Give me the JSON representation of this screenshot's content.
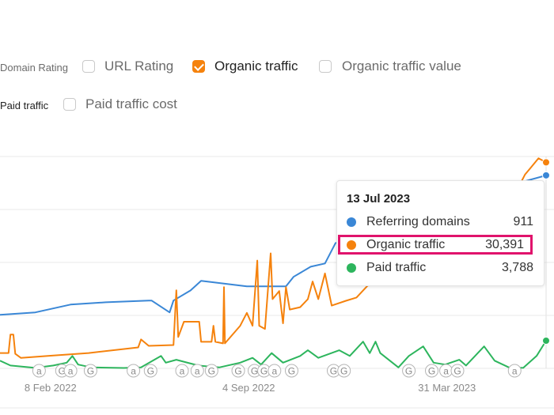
{
  "options": [
    {
      "label": "Domain Rating",
      "checked": false
    },
    {
      "label": "URL Rating",
      "checked": false
    },
    {
      "label": "Organic traffic",
      "checked": true
    },
    {
      "label": "Organic traffic value",
      "checked": false
    },
    {
      "label": "Paid traffic",
      "checked": false
    },
    {
      "label": "Paid traffic cost",
      "checked": false
    }
  ],
  "tooltip": {
    "date": "13 Jul 2023",
    "rows": [
      {
        "label": "Referring domains",
        "value": "911",
        "color": "#3a87d6"
      },
      {
        "label": "Organic traffic",
        "value": "30,391",
        "color": "#f5820d"
      },
      {
        "label": "Paid traffic",
        "value": "3,788",
        "color": "#2db55d"
      }
    ],
    "highlight_color": "#e0136c"
  },
  "chart_data": {
    "type": "line",
    "xlim": [
      "2021-12-17",
      "2023-07-13"
    ],
    "x_ticks": [
      {
        "date": "2022-02-08",
        "label": "8 Feb 2022"
      },
      {
        "date": "2022-09-04",
        "label": "4 Sep 2022"
      },
      {
        "date": "2023-03-31",
        "label": "31 Mar 2023"
      }
    ],
    "grid": true,
    "series": [
      {
        "name": "Referring domains",
        "color": "#3a87d6",
        "ymax": 1000,
        "points": [
          [
            "2021-12-17",
            253
          ],
          [
            "2022-01-23",
            264
          ],
          [
            "2022-03-01",
            301
          ],
          [
            "2022-04-07",
            312
          ],
          [
            "2022-05-22",
            320
          ],
          [
            "2022-05-25",
            320
          ],
          [
            "2022-06-13",
            264
          ],
          [
            "2022-06-17",
            320
          ],
          [
            "2022-07-05",
            368
          ],
          [
            "2022-07-16",
            413
          ],
          [
            "2022-09-02",
            387
          ],
          [
            "2022-10-13",
            387
          ],
          [
            "2022-10-21",
            432
          ],
          [
            "2022-11-08",
            480
          ],
          [
            "2022-11-23",
            495
          ],
          [
            "2022-12-04",
            591
          ],
          [
            "2023-01-21",
            673
          ],
          [
            "2023-03-12",
            748
          ],
          [
            "2023-05-01",
            804
          ],
          [
            "2023-06-10",
            848
          ],
          [
            "2023-06-22",
            885
          ],
          [
            "2023-07-13",
            911
          ]
        ]
      },
      {
        "name": "Organic traffic",
        "color": "#f5820d",
        "ymax": 31250,
        "points": [
          [
            "2021-12-17",
            2260
          ],
          [
            "2021-12-26",
            2260
          ],
          [
            "2021-12-28",
            4990
          ],
          [
            "2021-12-31",
            4990
          ],
          [
            "2022-01-02",
            2140
          ],
          [
            "2022-01-08",
            1540
          ],
          [
            "2022-02-11",
            1900
          ],
          [
            "2022-03-20",
            2260
          ],
          [
            "2022-05-11",
            3090
          ],
          [
            "2022-05-14",
            4270
          ],
          [
            "2022-05-22",
            3320
          ],
          [
            "2022-06-17",
            3440
          ],
          [
            "2022-06-20",
            11510
          ],
          [
            "2022-06-22",
            4630
          ],
          [
            "2022-06-28",
            6880
          ],
          [
            "2022-07-14",
            6880
          ],
          [
            "2022-07-16",
            3920
          ],
          [
            "2022-07-27",
            3920
          ],
          [
            "2022-07-29",
            6290
          ],
          [
            "2022-07-31",
            3920
          ],
          [
            "2022-08-08",
            3680
          ],
          [
            "2022-08-09",
            11990
          ],
          [
            "2022-08-10",
            3680
          ],
          [
            "2022-08-26",
            6290
          ],
          [
            "2022-09-02",
            8190
          ],
          [
            "2022-09-08",
            6290
          ],
          [
            "2022-09-13",
            15910
          ],
          [
            "2022-09-15",
            6290
          ],
          [
            "2022-09-21",
            5820
          ],
          [
            "2022-09-27",
            16970
          ],
          [
            "2022-09-29",
            10210
          ],
          [
            "2022-10-06",
            11400
          ],
          [
            "2022-10-10",
            6650
          ],
          [
            "2022-10-13",
            11990
          ],
          [
            "2022-10-17",
            8670
          ],
          [
            "2022-10-28",
            9020
          ],
          [
            "2022-11-05",
            10210
          ],
          [
            "2022-11-10",
            12820
          ],
          [
            "2022-11-16",
            10210
          ],
          [
            "2022-11-23",
            14010
          ],
          [
            "2022-11-30",
            9260
          ],
          [
            "2022-12-15",
            9970
          ],
          [
            "2022-12-26",
            10450
          ],
          [
            "2023-01-07",
            12230
          ],
          [
            "2023-01-25",
            12340
          ],
          [
            "2023-03-12",
            17330
          ],
          [
            "2023-05-01",
            21480
          ],
          [
            "2023-06-10",
            25640
          ],
          [
            "2023-06-21",
            28610
          ],
          [
            "2023-06-26",
            29440
          ],
          [
            "2023-07-05",
            30980
          ],
          [
            "2023-07-13",
            30391
          ]
        ]
      },
      {
        "name": "Paid traffic",
        "color": "#2db55d",
        "ymax": 29000,
        "points": [
          [
            "2021-12-17",
            1045
          ],
          [
            "2021-12-28",
            392
          ],
          [
            "2022-01-23",
            60
          ],
          [
            "2022-02-11",
            392
          ],
          [
            "2022-02-25",
            784
          ],
          [
            "2022-03-03",
            1698
          ],
          [
            "2022-03-09",
            522
          ],
          [
            "2022-03-23",
            131
          ],
          [
            "2022-04-26",
            50
          ],
          [
            "2022-05-14",
            131
          ],
          [
            "2022-06-04",
            1698
          ],
          [
            "2022-06-09",
            784
          ],
          [
            "2022-06-20",
            1175
          ],
          [
            "2022-07-13",
            392
          ],
          [
            "2022-08-04",
            131
          ],
          [
            "2022-08-26",
            784
          ],
          [
            "2022-09-08",
            1437
          ],
          [
            "2022-09-17",
            522
          ],
          [
            "2022-09-28",
            2090
          ],
          [
            "2022-10-10",
            784
          ],
          [
            "2022-10-28",
            1698
          ],
          [
            "2022-11-05",
            2481
          ],
          [
            "2022-11-16",
            1437
          ],
          [
            "2022-12-08",
            2481
          ],
          [
            "2022-12-19",
            1698
          ],
          [
            "2023-01-02",
            3657
          ],
          [
            "2023-01-09",
            2090
          ],
          [
            "2023-01-15",
            3657
          ],
          [
            "2023-01-20",
            2090
          ],
          [
            "2023-02-08",
            131
          ],
          [
            "2023-02-19",
            1698
          ],
          [
            "2023-03-06",
            3004
          ],
          [
            "2023-03-17",
            784
          ],
          [
            "2023-03-29",
            522
          ],
          [
            "2023-04-13",
            1175
          ],
          [
            "2023-04-20",
            392
          ],
          [
            "2023-05-09",
            3004
          ],
          [
            "2023-05-20",
            1045
          ],
          [
            "2023-06-04",
            131
          ],
          [
            "2023-06-19",
            60
          ],
          [
            "2023-07-03",
            1698
          ],
          [
            "2023-07-13",
            3788
          ]
        ]
      }
    ],
    "annotations": [
      {
        "date": "2022-01-27",
        "label": "a"
      },
      {
        "date": "2022-02-20",
        "label": "G"
      },
      {
        "date": "2022-03-01",
        "label": "a"
      },
      {
        "date": "2022-03-22",
        "label": "G"
      },
      {
        "date": "2022-05-06",
        "label": "a"
      },
      {
        "date": "2022-05-24",
        "label": "G"
      },
      {
        "date": "2022-06-26",
        "label": "a"
      },
      {
        "date": "2022-07-12",
        "label": "a"
      },
      {
        "date": "2022-07-27",
        "label": "G"
      },
      {
        "date": "2022-08-24",
        "label": "G"
      },
      {
        "date": "2022-09-10",
        "label": "G"
      },
      {
        "date": "2022-09-20",
        "label": "G"
      },
      {
        "date": "2022-10-01",
        "label": "a"
      },
      {
        "date": "2022-10-19",
        "label": "G"
      },
      {
        "date": "2022-12-02",
        "label": "G"
      },
      {
        "date": "2022-12-13",
        "label": "G"
      },
      {
        "date": "2023-02-19",
        "label": "G"
      },
      {
        "date": "2023-03-15",
        "label": "G"
      },
      {
        "date": "2023-03-30",
        "label": "a"
      },
      {
        "date": "2023-04-11",
        "label": "G"
      },
      {
        "date": "2023-06-10",
        "label": "a"
      }
    ]
  }
}
